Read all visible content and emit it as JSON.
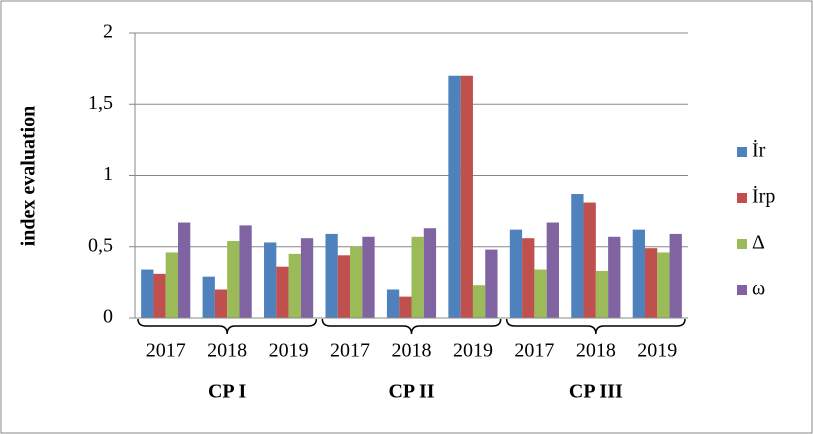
{
  "chart_data": {
    "type": "bar",
    "y_label": "index evaluation",
    "categories": [
      "2017",
      "2018",
      "2019",
      "2017",
      "2018",
      "2019",
      "2017",
      "2018",
      "2019"
    ],
    "groups": [
      "CP I",
      "CP II",
      "CP III"
    ],
    "series": [
      {
        "name": "İr",
        "color": "#4f81bd",
        "values": [
          0.34,
          0.29,
          0.53,
          0.59,
          0.2,
          1.7,
          0.62,
          0.87,
          0.62
        ]
      },
      {
        "name": "İrp",
        "color": "#c0504d",
        "values": [
          0.31,
          0.2,
          0.36,
          0.44,
          0.15,
          1.7,
          0.56,
          0.81,
          0.49
        ]
      },
      {
        "name": "Δ",
        "color": "#9bbb59",
        "values": [
          0.46,
          0.54,
          0.45,
          0.5,
          0.57,
          0.23,
          0.34,
          0.33,
          0.46
        ]
      },
      {
        "name": "ω",
        "color": "#8064a2",
        "values": [
          0.67,
          0.65,
          0.56,
          0.57,
          0.63,
          0.48,
          0.67,
          0.57,
          0.59
        ]
      }
    ],
    "ylim": [
      0,
      2
    ],
    "yticks": [
      0,
      {
        "value": 0.5,
        "label": "0,5"
      },
      1,
      {
        "value": 1.5,
        "label": "1,5"
      },
      2
    ],
    "grid": true,
    "legend": "right"
  }
}
